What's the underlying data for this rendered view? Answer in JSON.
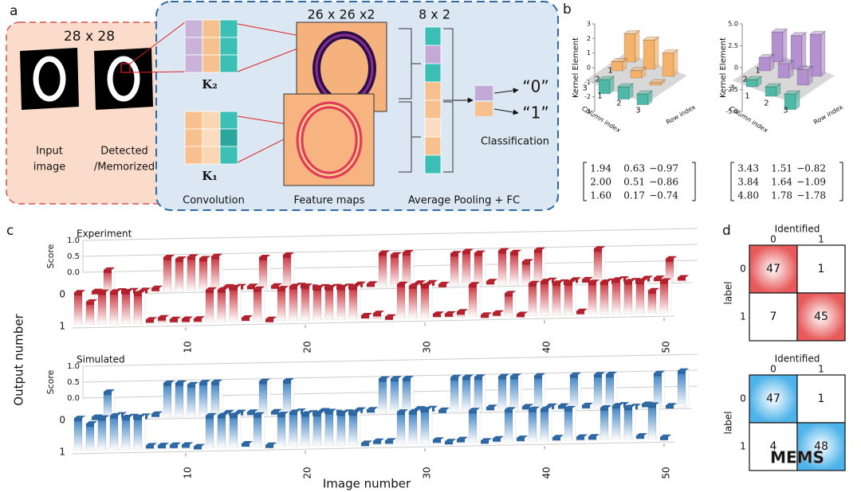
{
  "panel_labels": [
    "a",
    "b",
    "c",
    "d"
  ],
  "panel_a": {
    "input_size": "28 x 28",
    "input_label": [
      "Input",
      "image"
    ],
    "detected_label": [
      "Detected",
      "/Memorized"
    ],
    "kernel_2": "K₂",
    "kernel_1": "K₁",
    "feature_size": "26 x 26 x2",
    "pool_size": "8 x 2",
    "output_0": "“0”",
    "output_1": "“1”",
    "classification": "Classification",
    "steps": [
      "Convolution",
      "Feature maps",
      "Average Pooling + FC"
    ]
  },
  "panel_b": {
    "charts": [
      {
        "z_label": "Kernel Element",
        "x_label": "Column index",
        "y_label": "Row index",
        "zlim": [
          -3,
          3
        ],
        "zticks": [
          3,
          2,
          1,
          0,
          -1,
          -2,
          -3
        ],
        "axis_ticks": [
          1,
          2,
          3
        ],
        "bar_color": "#f5b26b",
        "negative_color": "#4fb8a6",
        "matrix": [
          [
            1.94,
            0.63,
            -0.97
          ],
          [
            2.0,
            0.51,
            -0.86
          ],
          [
            1.6,
            0.17,
            -0.74
          ]
        ],
        "matrix_labels": [
          [
            "1.94",
            "0.63",
            "−0.97"
          ],
          [
            "2.00",
            "0.51",
            "−0.86"
          ],
          [
            "1.60",
            "0.17",
            "−0.74"
          ]
        ]
      },
      {
        "z_label": "Kernel Element",
        "x_label": "Column index",
        "y_label": "Row index",
        "zlim": [
          -5,
          5
        ],
        "zticks": [
          {
            "value": 5,
            "label": "5.0"
          },
          2.5,
          0,
          -2.5,
          {
            "value": -5,
            "label": "-5.0"
          }
        ],
        "axis_ticks": [
          1,
          2,
          3
        ],
        "bar_color": "#b391cf",
        "negative_color": "#4fb8a6",
        "matrix": [
          [
            3.43,
            1.51,
            -0.82
          ],
          [
            3.84,
            1.64,
            -1.09
          ],
          [
            4.8,
            1.78,
            -1.78
          ]
        ],
        "matrix_labels": [
          [
            "3.43",
            "1.51",
            "−0.82"
          ],
          [
            "3.84",
            "1.64",
            "−1.09"
          ],
          [
            "4.80",
            "1.78",
            "−1.78"
          ]
        ]
      }
    ]
  },
  "panel_c": {
    "y_label": "Output number",
    "x_label": "Image number",
    "score_label": "Score",
    "score_ticks": [
      {
        "value": 1,
        "label": "1.0"
      },
      {
        "value": 0.5,
        "label": "0.5"
      },
      {
        "value": 0,
        "label": "0.0"
      }
    ],
    "ylim": [
      0,
      1
    ],
    "output_ticks": [
      0,
      1
    ],
    "xlim": [
      1,
      50
    ],
    "xticks": [
      10,
      20,
      30,
      40,
      50
    ],
    "x": [
      1,
      2,
      3,
      4,
      5,
      6,
      7,
      8,
      9,
      10,
      11,
      12,
      13,
      14,
      15,
      16,
      17,
      18,
      19,
      20,
      21,
      22,
      23,
      24,
      25,
      26,
      27,
      28,
      29,
      30,
      31,
      32,
      33,
      34,
      35,
      36,
      37,
      38,
      39,
      40,
      41,
      42,
      43,
      44,
      45,
      46,
      47,
      48,
      49,
      50
    ],
    "charts": [
      {
        "title": "Experiment",
        "color": "#c8303a",
        "top_color": "#b3202c",
        "output_0": [
          0.05,
          0.6,
          0.05,
          0.05,
          0.05,
          0.1,
          0.9,
          0.85,
          0.9,
          0.85,
          0.9,
          0.1,
          0.1,
          0.1,
          0.85,
          0.1,
          0.9,
          0.1,
          0.05,
          0.05,
          0.05,
          0.05,
          0.1,
          0.1,
          0.9,
          0.85,
          0.9,
          0.1,
          0.1,
          0.05,
          0.85,
          0.9,
          0.85,
          0.1,
          0.9,
          0.85,
          0.6,
          0.9,
          0.1,
          0.05,
          0.1,
          0.1,
          0.9,
          0.05,
          0.1,
          0.05,
          0.1,
          0.1,
          0.6,
          0.1
        ],
        "output_1": [
          0.85,
          0.6,
          0.85,
          0.85,
          0.85,
          0.8,
          0.1,
          0.15,
          0.1,
          0.1,
          0.1,
          0.85,
          0.85,
          0.9,
          0.1,
          0.85,
          0.05,
          0.85,
          0.9,
          0.9,
          0.85,
          0.85,
          0.85,
          0.85,
          0.1,
          0.15,
          0.05,
          0.9,
          0.85,
          0.85,
          0.1,
          0.1,
          0.15,
          0.85,
          0.05,
          0.1,
          0.6,
          0.05,
          0.85,
          0.9,
          0.85,
          0.85,
          0.1,
          0.85,
          0.85,
          0.9,
          0.85,
          0.85,
          0.6,
          0.85
        ]
      },
      {
        "title": "Simulated",
        "color": "#3a7fc0",
        "top_color": "#2d67a3",
        "output_0": [
          0.05,
          0.7,
          0.1,
          0.05,
          0.05,
          0.1,
          0.9,
          0.9,
          0.85,
          0.9,
          0.9,
          0.1,
          0.1,
          0.1,
          0.9,
          0.1,
          0.9,
          0.1,
          0.05,
          0.1,
          0.05,
          0.05,
          0.1,
          0.1,
          0.9,
          0.9,
          0.9,
          0.1,
          0.1,
          0.05,
          0.9,
          0.9,
          0.9,
          0.1,
          0.9,
          0.9,
          0.1,
          0.9,
          0.1,
          0.1,
          0.9,
          0.1,
          0.9,
          0.9,
          0.1,
          0.05,
          0.1,
          0.9,
          0.05,
          0.95
        ],
        "output_1": [
          0.85,
          0.7,
          0.85,
          0.9,
          0.85,
          0.85,
          0.1,
          0.1,
          0.1,
          0.1,
          0.05,
          0.85,
          0.85,
          0.85,
          0.1,
          0.85,
          0.05,
          0.85,
          0.9,
          0.85,
          0.85,
          0.9,
          0.85,
          0.85,
          0.05,
          0.1,
          0.1,
          0.85,
          0.85,
          0.9,
          0.1,
          0.05,
          0.1,
          0.85,
          0.05,
          0.1,
          0.85,
          0.1,
          0.85,
          0.85,
          0.1,
          0.85,
          0.1,
          0.1,
          0.85,
          0.9,
          0.85,
          0.1,
          0.9,
          0.05
        ]
      }
    ]
  },
  "panel_d": {
    "matrices": [
      {
        "title": "Identified",
        "columns": [
          "0",
          "1"
        ],
        "row_label": "label",
        "rows": [
          "0",
          "1"
        ],
        "values": [
          [
            47,
            1
          ],
          [
            7,
            45
          ]
        ],
        "color": "#e85a5a"
      },
      {
        "title": "Identified",
        "columns": [
          "0",
          "1"
        ],
        "row_label": "label",
        "rows": [
          "0",
          "1"
        ],
        "values": [
          [
            47,
            1
          ],
          [
            4,
            48
          ]
        ],
        "color": "#4db3ea"
      }
    ]
  },
  "watermark": "MEMS"
}
